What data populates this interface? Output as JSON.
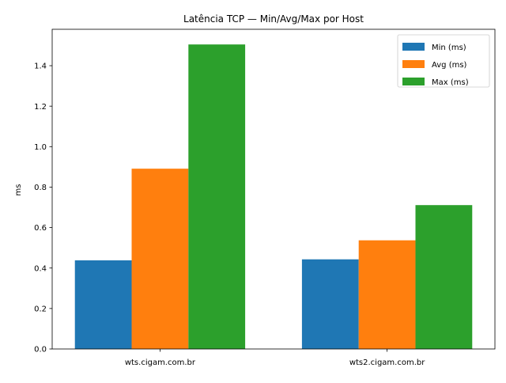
{
  "chart_data": {
    "type": "bar",
    "title": "Latência TCP — Min/Avg/Max por Host",
    "xlabel": "",
    "ylabel": "ms",
    "categories": [
      "wts.cigam.com.br",
      "wts2.cigam.com.br"
    ],
    "series": [
      {
        "name": "Min (ms)",
        "values": [
          0.438,
          0.443
        ],
        "color": "#1f77b4"
      },
      {
        "name": "Avg (ms)",
        "values": [
          0.891,
          0.537
        ],
        "color": "#ff7f0e"
      },
      {
        "name": "Max (ms)",
        "values": [
          1.505,
          0.711
        ],
        "color": "#2ca02c"
      }
    ],
    "ylim": [
      0,
      1.58
    ],
    "yticks": [
      0.0,
      0.2,
      0.4,
      0.6,
      0.8,
      1.0,
      1.2,
      1.4
    ],
    "ytick_labels": [
      "0.0",
      "0.2",
      "0.4",
      "0.6",
      "0.8",
      "1.0",
      "1.2",
      "1.4"
    ],
    "grid": false,
    "legend_position": "top-right"
  }
}
